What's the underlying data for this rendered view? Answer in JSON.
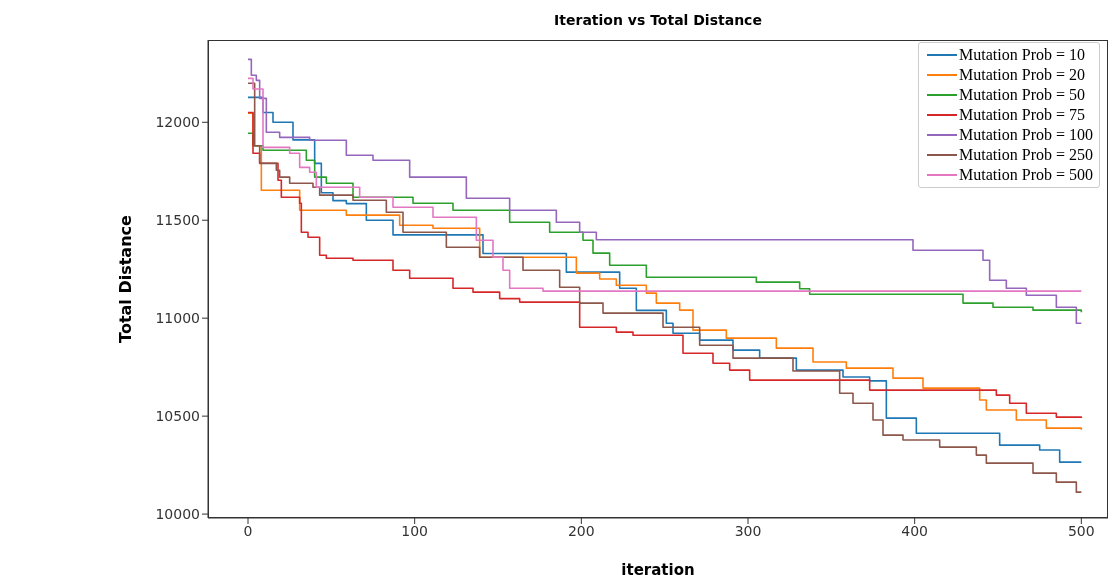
{
  "chart_data": {
    "type": "step",
    "title": "Iteration vs Total Distance",
    "xlabel": "iteration",
    "ylabel": "Total Distance",
    "xlim": [
      -24,
      516
    ],
    "ylim": [
      9980,
      12420
    ],
    "xticks": [
      0,
      100,
      200,
      300,
      400,
      500
    ],
    "yticks": [
      10000,
      10500,
      11000,
      11500,
      12000
    ],
    "grid": false,
    "legend": "top right",
    "marker": "none",
    "line_style": "solid",
    "series": [
      {
        "name": "Mutation Prob = 10",
        "color": "#1f77b4",
        "x": [
          0,
          9,
          15,
          27,
          40,
          44,
          51,
          59,
          71,
          87,
          141,
          191,
          223,
          233,
          251,
          255,
          271,
          291,
          307,
          329,
          357,
          373,
          383,
          401,
          451,
          475,
          487,
          500
        ],
        "values": [
          12127,
          12050,
          12000,
          11910,
          11790,
          11640,
          11600,
          11585,
          11500,
          11425,
          11330,
          11235,
          11153,
          11040,
          10974,
          10923,
          10888,
          10837,
          10796,
          10735,
          10700,
          10680,
          10490,
          10413,
          10352,
          10327,
          10265,
          10265
        ]
      },
      {
        "name": "Mutation Prob = 20",
        "color": "#ff7f0e",
        "x": [
          0,
          3,
          8,
          31,
          59,
          91,
          111,
          139,
          197,
          211,
          221,
          239,
          245,
          259,
          267,
          287,
          317,
          339,
          359,
          387,
          405,
          439,
          443,
          461,
          479,
          500
        ],
        "values": [
          12046,
          11880,
          11653,
          11551,
          11526,
          11474,
          11459,
          11311,
          11230,
          11200,
          11168,
          11128,
          11077,
          11041,
          10939,
          10898,
          10847,
          10776,
          10745,
          10694,
          10643,
          10582,
          10531,
          10480,
          10439,
          10430
        ]
      },
      {
        "name": "Mutation Prob = 50",
        "color": "#2ca02c",
        "x": [
          0,
          3,
          9,
          35,
          40,
          47,
          63,
          99,
          123,
          157,
          181,
          201,
          207,
          217,
          239,
          305,
          331,
          337,
          429,
          447,
          471,
          500
        ],
        "values": [
          11944,
          11880,
          11857,
          11806,
          11720,
          11689,
          11617,
          11587,
          11551,
          11490,
          11439,
          11398,
          11332,
          11270,
          11209,
          11184,
          11150,
          11122,
          11077,
          11056,
          11041,
          11030
        ]
      },
      {
        "name": "Mutation Prob = 75",
        "color": "#d62728",
        "x": [
          0,
          3,
          7,
          18,
          20,
          31,
          32,
          36,
          43,
          47,
          63,
          87,
          97,
          123,
          135,
          151,
          163,
          199,
          221,
          231,
          261,
          279,
          289,
          301,
          373,
          449,
          457,
          467,
          485,
          500
        ],
        "values": [
          12050,
          11842,
          11791,
          11704,
          11617,
          11587,
          11439,
          11413,
          11321,
          11306,
          11296,
          11245,
          11204,
          11153,
          11133,
          11100,
          11082,
          10954,
          10929,
          10913,
          10821,
          10770,
          10735,
          10684,
          10633,
          10607,
          10566,
          10515,
          10495,
          10490
        ]
      },
      {
        "name": "Mutation Prob = 100",
        "color": "#9467bd",
        "x": [
          0,
          2,
          5,
          7,
          11,
          19,
          37,
          59,
          75,
          97,
          131,
          157,
          185,
          199,
          209,
          399,
          441,
          445,
          455,
          467,
          485,
          497,
          500
        ],
        "values": [
          12321,
          12240,
          12214,
          12122,
          11949,
          11923,
          11908,
          11832,
          11806,
          11720,
          11612,
          11551,
          11490,
          11439,
          11400,
          11347,
          11296,
          11194,
          11153,
          11117,
          11056,
          10974,
          10974
        ]
      },
      {
        "name": "Mutation Prob = 250",
        "color": "#8c564b",
        "x": [
          0,
          4,
          7,
          17,
          19,
          25,
          39,
          43,
          63,
          83,
          93,
          119,
          139,
          165,
          187,
          199,
          213,
          249,
          271,
          291,
          327,
          355,
          363,
          375,
          381,
          393,
          415,
          437,
          443,
          471,
          485,
          497,
          500
        ],
        "values": [
          12199,
          11880,
          11790,
          11755,
          11720,
          11689,
          11668,
          11628,
          11602,
          11541,
          11439,
          11362,
          11311,
          11245,
          11158,
          11077,
          11026,
          10954,
          10862,
          10796,
          10730,
          10617,
          10566,
          10480,
          10403,
          10378,
          10342,
          10301,
          10260,
          10209,
          10163,
          10112,
          10112
        ]
      },
      {
        "name": "Mutation Prob = 500",
        "color": "#e377c2",
        "x": [
          0,
          3,
          9,
          25,
          31,
          37,
          41,
          67,
          87,
          111,
          137,
          147,
          153,
          157,
          177,
          500
        ],
        "values": [
          12224,
          12170,
          11872,
          11842,
          11770,
          11745,
          11668,
          11617,
          11566,
          11515,
          11398,
          11311,
          11245,
          11153,
          11138,
          11138
        ]
      }
    ]
  }
}
